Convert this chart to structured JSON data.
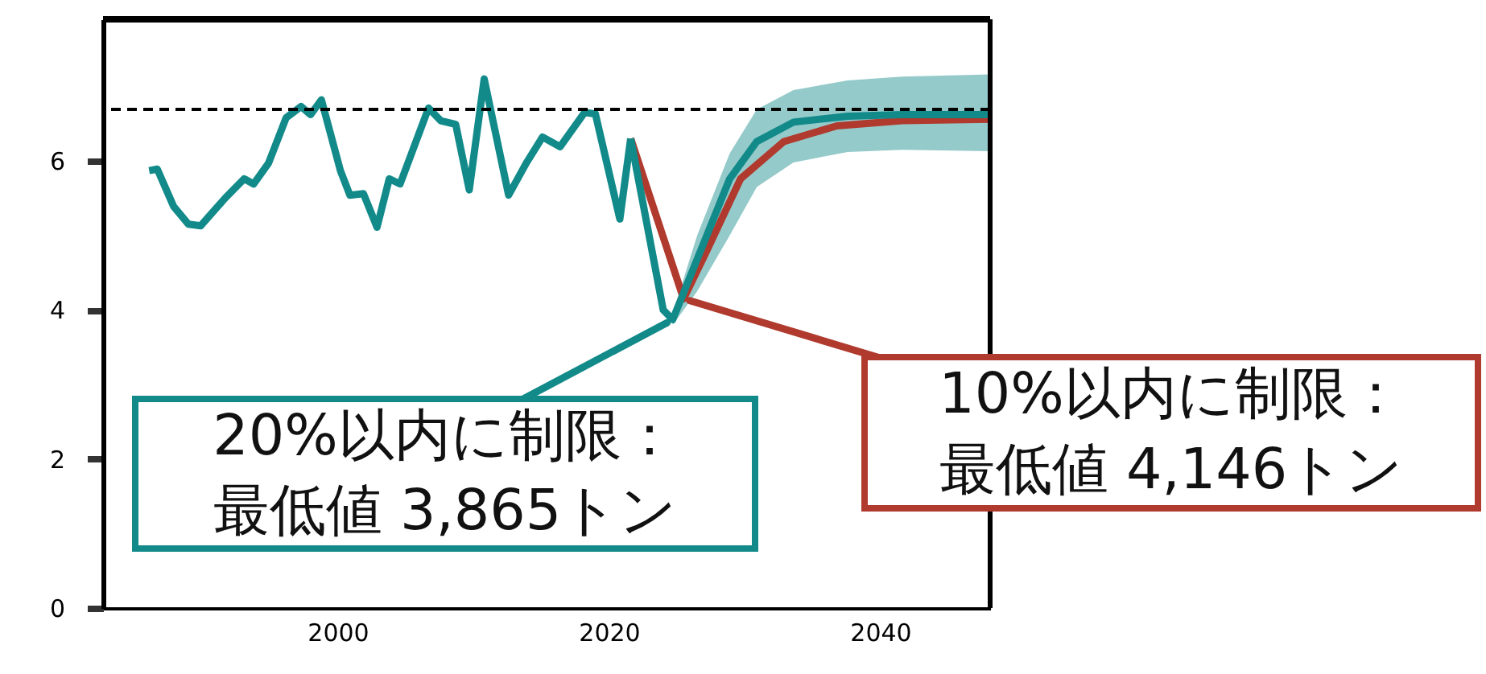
{
  "chart_data": {
    "type": "line",
    "xlim": [
      1982.7,
      2048.1
    ],
    "ylim": [
      0,
      7.9
    ],
    "xticks": [
      2000,
      2020,
      2040
    ],
    "yticks": [
      0,
      2,
      4,
      6
    ],
    "grid": false,
    "marker": "none",
    "line_style": "solid",
    "series": [
      {
        "color": "#138a8a",
        "x": [
          1986.1,
          1986.7,
          1987.9,
          1989.0,
          1989.9,
          1991.7,
          1993.1,
          1993.8,
          1994.9,
          1996.2,
          1997.3,
          1998.0,
          1998.8,
          2000.2,
          2000.9,
          2001.9,
          2002.9,
          2003.8,
          2004.6,
          2006.7,
          2007.6,
          2008.7,
          2009.7,
          2010.8,
          2012.6,
          2013.9,
          2015.1,
          2016.4,
          2018.2,
          2019.0,
          2020.8,
          2021.6
        ],
        "values": [
          5.87,
          5.89,
          5.39,
          5.15,
          5.13,
          5.5,
          5.76,
          5.69,
          5.97,
          6.58,
          6.73,
          6.62,
          6.82,
          5.87,
          5.54,
          5.56,
          5.11,
          5.76,
          5.69,
          6.71,
          6.54,
          6.49,
          5.61,
          7.1,
          5.54,
          5.97,
          6.32,
          6.19,
          6.65,
          6.63,
          5.22,
          6.3
        ]
      },
      {
        "color": "#b03a2e",
        "x": [
          2021.6,
          2025.5,
          2027.3,
          2029.7,
          2032.9,
          2036.8,
          2041.6,
          2048.1
        ],
        "values": [
          6.3,
          4.15,
          4.83,
          5.76,
          6.26,
          6.47,
          6.54,
          6.56
        ]
      },
      {
        "color": "#138a8a",
        "x": [
          2021.6,
          2024.0,
          2024.7,
          2026.5,
          2028.9,
          2030.9,
          2033.6,
          2037.6,
          2041.6,
          2048.1
        ],
        "values": [
          6.3,
          4.0,
          3.87,
          4.68,
          5.76,
          6.26,
          6.52,
          6.6,
          6.62,
          6.62
        ],
        "lower": [
          null,
          null,
          3.8,
          4.25,
          5.0,
          5.65,
          5.98,
          6.12,
          6.15,
          6.13
        ],
        "upper": [
          null,
          null,
          3.95,
          5.0,
          6.1,
          6.69,
          6.95,
          7.08,
          7.13,
          7.16
        ]
      }
    ],
    "ref_lines": [
      {
        "axis": "y",
        "value": 6.69,
        "color": "#000000",
        "line_style": "dashed"
      }
    ],
    "annotations": [
      {
        "text": "20%以内に制限：",
        "x": 2024.7,
        "y": 3.87
      },
      "最低値 3,865トン",
      {
        "text": "10%以内に制限：",
        "x": 2025.5,
        "y": 4.15
      },
      "最低値 4,146トン"
    ]
  }
}
